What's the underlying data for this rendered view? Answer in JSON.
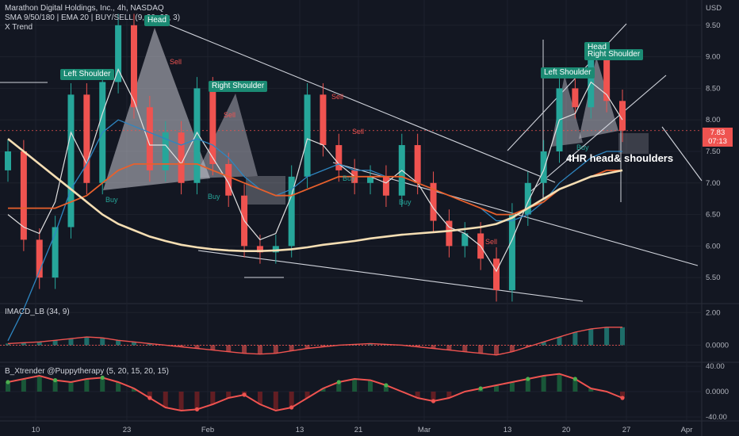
{
  "header": {
    "title": "Marathon Digital Holdings, Inc., 4h, NASDAQ",
    "indicators": "SMA 9/50/180 | EMA 20 | BUY/SELL (9, 20, 20, 3)",
    "trend_label": "X Trend",
    "currency": "USD"
  },
  "price_badge": {
    "price": "7.83",
    "countdown": "07:13"
  },
  "annotations": {
    "left_shoulder_1": "Left Shoulder",
    "head_1": "Head",
    "right_shoulder_1": "Right Shoulder",
    "left_shoulder_2": "Left Shoulder",
    "head_2": "Head",
    "right_shoulder_2": "Right Shoulder",
    "pattern_note": "4HR head& shoulders"
  },
  "signals": {
    "sell": "Sell",
    "buy": "Buy"
  },
  "panes": {
    "macd_label": "IMACD_LB (34, 9)",
    "xtrender_label": "B_Xtrender @Puppytherapy (5, 20, 15, 20, 15)"
  },
  "chart_data": [
    {
      "type": "line",
      "pane": "price",
      "y_ticks": [
        "9.50",
        "9.00",
        "8.50",
        "8.00",
        "7.50",
        "7.00",
        "6.50",
        "6.00",
        "5.50"
      ],
      "ylim": [
        5.1,
        9.9
      ],
      "x_ticks": [
        "10",
        "23",
        "Feb",
        "13",
        "21",
        "Mar",
        "13",
        "20",
        "27",
        "Apr"
      ],
      "last_price": 7.83,
      "series": [
        {
          "values": [
            7.5,
            6.1,
            5.5,
            6.3,
            8.4,
            7.0,
            8.6,
            9.5,
            8.2,
            7.2,
            7.8,
            7.0,
            8.5,
            7.3,
            6.8,
            6.0,
            5.9,
            6.0,
            7.1,
            8.4,
            7.6,
            7.2,
            7.0,
            7.1,
            6.8,
            7.6,
            7.0,
            6.4,
            6.0,
            6.2,
            5.8,
            5.3,
            6.5,
            7.0,
            7.5,
            8.5,
            8.2,
            9.0,
            8.3,
            7.83
          ]
        },
        {
          "values": [
            6.5,
            6.3,
            6.2,
            6.7,
            7.8,
            7.3,
            8.1,
            8.8,
            8.3,
            7.6,
            7.6,
            7.3,
            7.8,
            7.4,
            7.0,
            6.4,
            6.1,
            6.2,
            6.8,
            7.7,
            7.6,
            7.3,
            7.1,
            7.1,
            7.0,
            7.2,
            7.0,
            6.6,
            6.3,
            6.2,
            6.0,
            5.6,
            6.1,
            6.7,
            7.2,
            8.0,
            8.1,
            8.6,
            8.4,
            8.0
          ]
        },
        {
          "values": [
            4.5,
            5.0,
            5.6,
            6.2,
            6.9,
            7.3,
            7.8,
            8.0,
            7.9,
            7.8,
            7.7,
            7.6,
            7.7,
            7.6,
            7.4,
            7.1,
            6.9,
            6.8,
            6.9,
            7.1,
            7.2,
            7.3,
            7.2,
            7.2,
            7.1,
            7.1,
            7.0,
            6.9,
            6.8,
            6.7,
            6.6,
            6.4,
            6.4,
            6.5,
            6.7,
            7.0,
            7.2,
            7.4,
            7.5,
            7.5
          ]
        },
        {
          "values": [
            6.6,
            6.6,
            6.6,
            6.6,
            6.7,
            6.8,
            7.0,
            7.2,
            7.3,
            7.3,
            7.3,
            7.3,
            7.3,
            7.2,
            7.1,
            7.0,
            6.9,
            6.8,
            6.8,
            6.9,
            7.0,
            7.1,
            7.1,
            7.1,
            7.1,
            7.1,
            7.0,
            6.9,
            6.8,
            6.7,
            6.6,
            6.5,
            6.5,
            6.6,
            6.7,
            6.9,
            7.0,
            7.1,
            7.2,
            7.2
          ]
        },
        {
          "values": [
            7.7,
            7.5,
            7.3,
            7.1,
            6.9,
            6.7,
            6.5,
            6.35,
            6.25,
            6.15,
            6.08,
            6.02,
            5.98,
            5.95,
            5.93,
            5.92,
            5.92,
            5.93,
            5.95,
            5.98,
            6.02,
            6.05,
            6.08,
            6.12,
            6.15,
            6.18,
            6.2,
            6.22,
            6.24,
            6.27,
            6.3,
            6.35,
            6.45,
            6.6,
            6.75,
            6.9,
            7.0,
            7.1,
            7.15,
            7.2
          ]
        }
      ]
    },
    {
      "type": "line",
      "pane": "macd",
      "y_ticks": [
        "2.00",
        "0.0000"
      ],
      "ylim": [
        -1.0,
        2.5
      ],
      "series": [
        {
          "values": [
            0.1,
            0.15,
            0.2,
            0.3,
            0.4,
            0.5,
            0.45,
            0.3,
            0.2,
            0.1,
            0.0,
            -0.1,
            -0.2,
            -0.3,
            -0.4,
            -0.5,
            -0.55,
            -0.5,
            -0.35,
            -0.2,
            -0.1,
            0.0,
            0.05,
            0.1,
            0.05,
            0.0,
            -0.1,
            -0.2,
            -0.3,
            -0.4,
            -0.5,
            -0.6,
            -0.4,
            -0.1,
            0.2,
            0.5,
            0.8,
            1.0,
            1.1,
            1.1
          ]
        }
      ]
    },
    {
      "type": "line",
      "pane": "xtrender",
      "y_ticks": [
        "40.00",
        "0.0000",
        "-40.00"
      ],
      "ylim": [
        -45,
        45
      ],
      "series": [
        {
          "values": [
            15,
            20,
            25,
            18,
            15,
            20,
            22,
            15,
            5,
            -10,
            -25,
            -30,
            -28,
            -20,
            -10,
            -5,
            -20,
            -30,
            -25,
            -10,
            5,
            15,
            20,
            18,
            10,
            0,
            -10,
            -15,
            -10,
            0,
            5,
            10,
            15,
            20,
            25,
            28,
            20,
            5,
            0,
            -10
          ]
        }
      ]
    }
  ]
}
